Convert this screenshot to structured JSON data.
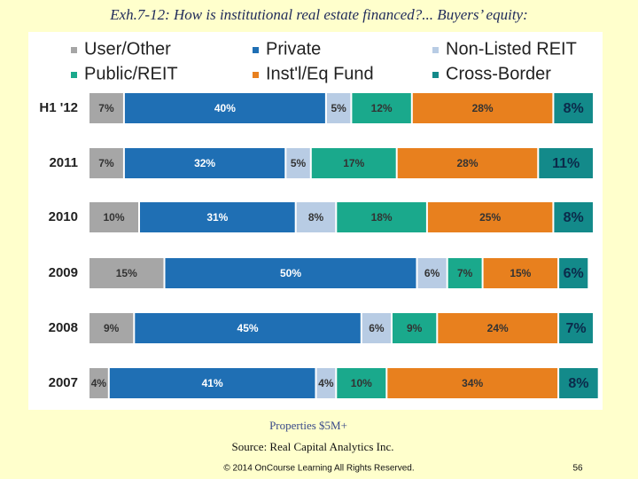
{
  "chart_data": {
    "type": "stacked-bar-horizontal",
    "title": "Exh.7-12: How is institutional real estate financed?... Buyers’ equity:",
    "categories": [
      "H1 '12",
      "2011",
      "2010",
      "2009",
      "2008",
      "2007"
    ],
    "series": [
      {
        "name": "User/Other",
        "color": "#a6a6a6",
        "values": [
          7,
          7,
          10,
          15,
          9,
          4
        ],
        "value_labels": [
          "7%",
          "7%",
          "10%",
          "15%",
          "9%",
          "4%"
        ]
      },
      {
        "name": "Private",
        "color": "#1f6fb4",
        "values": [
          40,
          32,
          31,
          50,
          45,
          41
        ],
        "value_labels": [
          "40%",
          "32%",
          "31%",
          "50%",
          "45%",
          "41%"
        ]
      },
      {
        "name": "Non-Listed REIT",
        "color": "#b8cce4",
        "values": [
          5,
          5,
          8,
          6,
          6,
          4
        ],
        "value_labels": [
          "5%",
          "5%",
          "8%",
          "6%",
          "6%",
          "4%"
        ]
      },
      {
        "name": "Public/REIT",
        "color": "#1aa98c",
        "values": [
          12,
          17,
          18,
          7,
          9,
          10
        ],
        "value_labels": [
          "12%",
          "17%",
          "18%",
          "7%",
          "9%",
          "10%"
        ]
      },
      {
        "name": "Inst'l/Eq Fund",
        "color": "#e8801e",
        "values": [
          28,
          28,
          25,
          15,
          24,
          34
        ],
        "value_labels": [
          "28%",
          "28%",
          "25%",
          "15%",
          "24%",
          "34%"
        ]
      },
      {
        "name": "Cross-Border",
        "color": "#138a8a",
        "values": [
          8,
          11,
          8,
          6,
          7,
          8
        ],
        "value_labels": [
          "8%",
          "11%",
          "8%",
          "6%",
          "7%",
          "8%"
        ]
      }
    ],
    "note": "Properties $5M+",
    "source": "Source: Real Capital Analytics Inc."
  },
  "footer": {
    "copyright": "© 2014 OnCourse Learning  All Rights Reserved.",
    "page_number": "56"
  }
}
